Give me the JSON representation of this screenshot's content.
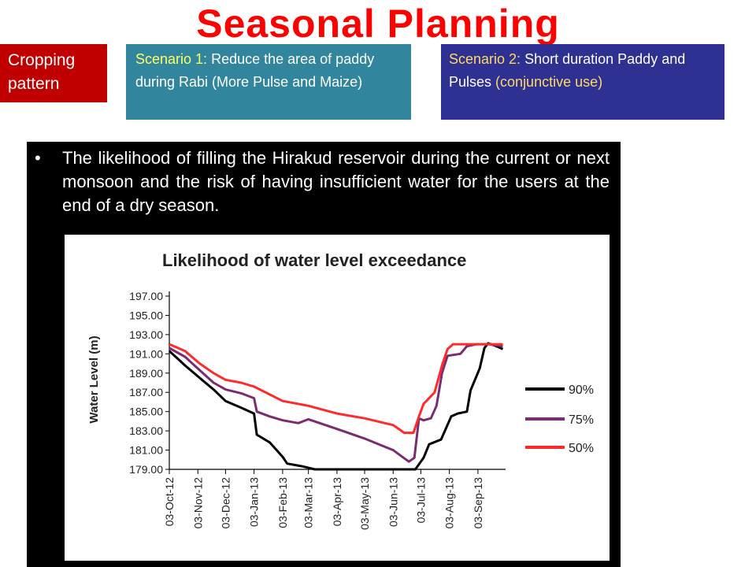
{
  "slide": {
    "title": "Seasonal Planning",
    "cropping_tag": {
      "line1": "Cropping",
      "line2": "pattern"
    },
    "scenario1": {
      "label": "Scenario 1:",
      "text": "Reduce the area of paddy during Rabi (More Pulse and Maize)"
    },
    "scenario2": {
      "label": "Scenario 2:",
      "text_a": "Short duration Paddy and Pulses",
      "text_b": "(conjunctive use)"
    },
    "bullet": {
      "symbol": "•",
      "text": "The likelihood of filling the Hirakud reservoir during the current or next monsoon and the risk of having insufficient water for the users at the end of a dry season."
    }
  },
  "chart_data": {
    "type": "line",
    "title": "Likelihood of water level exceedance",
    "ylabel": "Water Level (m)",
    "xlabel": "",
    "ylim": [
      179,
      197
    ],
    "y_ticks": [
      "179.00",
      "181.00",
      "183.00",
      "185.00",
      "187.00",
      "189.00",
      "191.00",
      "193.00",
      "195.00",
      "197.00"
    ],
    "x_ticks": [
      "03-Oct-12",
      "03-Nov-12",
      "03-Dec-12",
      "03-Jan-13",
      "03-Feb-13",
      "03-Mar-13",
      "03-Apr-13",
      "03-May-13",
      "03-Jun-13",
      "03-Jul-13",
      "03-Aug-13",
      "03-Sep-13"
    ],
    "legend_position": "right",
    "grid": false,
    "series": [
      {
        "name": "90%",
        "color": "#000000",
        "points": [
          [
            "2012-10-03",
            191.3
          ],
          [
            "2012-10-20",
            189.8
          ],
          [
            "2012-11-05",
            188.5
          ],
          [
            "2012-11-20",
            187.3
          ],
          [
            "2012-12-03",
            186.1
          ],
          [
            "2012-12-20",
            185.4
          ],
          [
            "2013-01-03",
            184.8
          ],
          [
            "2013-01-06",
            182.6
          ],
          [
            "2013-01-20",
            181.8
          ],
          [
            "2013-02-03",
            180.3
          ],
          [
            "2013-02-08",
            179.6
          ],
          [
            "2013-02-25",
            179.3
          ],
          [
            "2013-03-10",
            179.0
          ],
          [
            "2013-06-15",
            179.0
          ],
          [
            "2013-06-27",
            179.0
          ],
          [
            "2013-07-06",
            180.2
          ],
          [
            "2013-07-12",
            181.6
          ],
          [
            "2013-07-25",
            182.1
          ],
          [
            "2013-08-05",
            184.5
          ],
          [
            "2013-08-12",
            184.8
          ],
          [
            "2013-08-22",
            185.0
          ],
          [
            "2013-08-26",
            187.2
          ],
          [
            "2013-09-05",
            189.5
          ],
          [
            "2013-09-10",
            191.6
          ],
          [
            "2013-09-14",
            192.1
          ],
          [
            "2013-09-20",
            191.9
          ],
          [
            "2013-09-30",
            191.5
          ]
        ]
      },
      {
        "name": "75%",
        "color": "#7b2c6e",
        "points": [
          [
            "2012-10-03",
            191.6
          ],
          [
            "2012-10-20",
            190.7
          ],
          [
            "2012-11-05",
            189.3
          ],
          [
            "2012-11-20",
            188.0
          ],
          [
            "2012-12-03",
            187.3
          ],
          [
            "2012-12-20",
            186.9
          ],
          [
            "2013-01-03",
            186.4
          ],
          [
            "2013-01-06",
            185.0
          ],
          [
            "2013-01-20",
            184.5
          ],
          [
            "2013-02-03",
            184.1
          ],
          [
            "2013-02-20",
            183.8
          ],
          [
            "2013-03-03",
            184.2
          ],
          [
            "2013-04-03",
            183.2
          ],
          [
            "2013-05-03",
            182.2
          ],
          [
            "2013-06-03",
            181.0
          ],
          [
            "2013-06-10",
            180.5
          ],
          [
            "2013-06-20",
            179.8
          ],
          [
            "2013-06-26",
            180.2
          ],
          [
            "2013-07-01",
            184.3
          ],
          [
            "2013-07-06",
            184.1
          ],
          [
            "2013-07-14",
            184.3
          ],
          [
            "2013-07-20",
            185.6
          ],
          [
            "2013-07-26",
            189.0
          ],
          [
            "2013-08-01",
            190.8
          ],
          [
            "2013-08-15",
            191.0
          ],
          [
            "2013-08-22",
            191.8
          ],
          [
            "2013-09-01",
            192.0
          ],
          [
            "2013-09-15",
            192.0
          ],
          [
            "2013-09-30",
            191.8
          ]
        ]
      },
      {
        "name": "50%",
        "color": "#ff2a2a",
        "points": [
          [
            "2012-10-03",
            192.0
          ],
          [
            "2012-10-20",
            191.3
          ],
          [
            "2012-11-05",
            190.0
          ],
          [
            "2012-11-20",
            189.0
          ],
          [
            "2012-12-03",
            188.3
          ],
          [
            "2012-12-20",
            188.0
          ],
          [
            "2013-01-03",
            187.6
          ],
          [
            "2013-02-03",
            186.1
          ],
          [
            "2013-03-03",
            185.6
          ],
          [
            "2013-04-03",
            184.8
          ],
          [
            "2013-05-03",
            184.3
          ],
          [
            "2013-06-03",
            183.6
          ],
          [
            "2013-06-15",
            182.8
          ],
          [
            "2013-06-25",
            182.8
          ],
          [
            "2013-07-01",
            184.5
          ],
          [
            "2013-07-06",
            185.8
          ],
          [
            "2013-07-18",
            187.0
          ],
          [
            "2013-07-26",
            189.8
          ],
          [
            "2013-08-01",
            191.5
          ],
          [
            "2013-08-07",
            192.0
          ],
          [
            "2013-09-15",
            192.0
          ],
          [
            "2013-09-30",
            192.0
          ]
        ]
      }
    ]
  }
}
